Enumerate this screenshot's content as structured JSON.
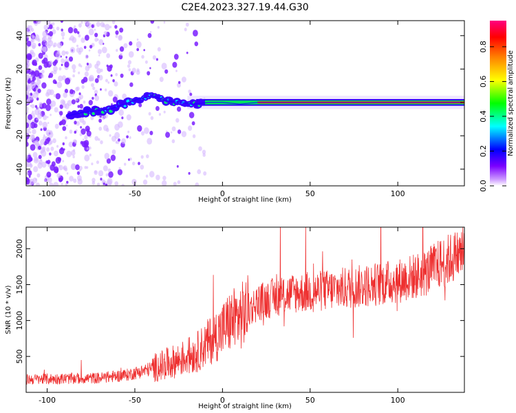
{
  "title": "C2E4.2023.327.19.44.G30",
  "chart_data": [
    {
      "type": "heatmap",
      "xlabel": "Height of straight line (km)",
      "ylabel": "Frequency (Hz)",
      "xlim": [
        -112,
        138
      ],
      "ylim": [
        -50,
        49
      ],
      "xticks": [
        -100,
        -50,
        0,
        50,
        100
      ],
      "yticks": [
        -40,
        -20,
        0,
        20,
        40
      ],
      "colorbar": {
        "label": "Normalized spectral amplitude",
        "range": [
          0.0,
          0.95
        ],
        "ticks": [
          "0.0",
          "0.2",
          "0.4",
          "0.6",
          "0.8"
        ],
        "colormap": [
          "#ffffff",
          "#7a00ff",
          "#0000ff",
          "#00ffff",
          "#00ff00",
          "#ffff00",
          "#ff8000",
          "#ff0000",
          "#ff0080"
        ]
      },
      "ridge": {
        "x": [
          -88,
          -80,
          -72,
          -64,
          -56,
          -48,
          -40,
          -32,
          -24,
          -16,
          -8,
          0,
          10,
          20,
          40,
          60,
          80,
          100,
          120,
          137
        ],
        "y": [
          -8,
          -6,
          -5,
          -4,
          -1,
          2,
          4,
          1,
          0,
          -1,
          0,
          0,
          -1,
          0,
          0,
          0,
          0,
          0,
          0,
          0
        ]
      },
      "noise_extent_x": [
        -112,
        -20
      ]
    },
    {
      "type": "line",
      "xlabel": "Height of straight line (km)",
      "ylabel": "SNR (10 * v/v)",
      "xlim": [
        -112,
        138
      ],
      "ylim": [
        0,
        2300
      ],
      "xticks": [
        -100,
        -50,
        0,
        50,
        100
      ],
      "yticks": [
        500,
        1000,
        1500,
        2000
      ],
      "series": [
        {
          "color": "#ee3030",
          "x": [
            -112,
            -90,
            -70,
            -55,
            -45,
            -35,
            -25,
            -15,
            -8,
            0,
            5,
            10,
            15,
            20,
            30,
            40,
            60,
            80,
            100,
            115,
            125,
            138
          ],
          "y": [
            180,
            190,
            200,
            240,
            300,
            370,
            450,
            550,
            700,
            870,
            1000,
            1050,
            1150,
            1250,
            1330,
            1380,
            1420,
            1480,
            1550,
            1650,
            1800,
            1950
          ]
        }
      ]
    }
  ]
}
